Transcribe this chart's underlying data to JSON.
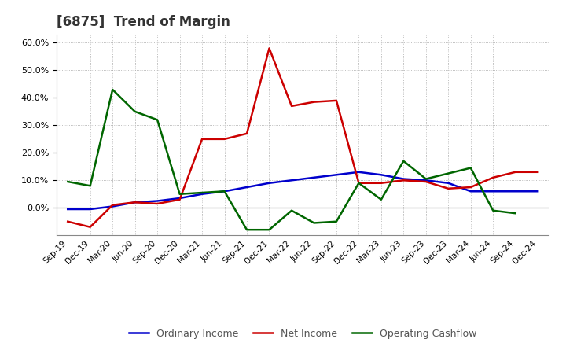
{
  "title": "[6875]  Trend of Margin",
  "x_labels": [
    "Sep-19",
    "Dec-19",
    "Mar-20",
    "Jun-20",
    "Sep-20",
    "Dec-20",
    "Mar-21",
    "Jun-21",
    "Sep-21",
    "Dec-21",
    "Mar-22",
    "Jun-22",
    "Sep-22",
    "Dec-22",
    "Mar-23",
    "Jun-23",
    "Sep-23",
    "Dec-23",
    "Mar-24",
    "Jun-24",
    "Sep-24",
    "Dec-24"
  ],
  "ordinary_income": [
    -0.5,
    -0.5,
    0.5,
    2.0,
    2.5,
    3.5,
    5.0,
    6.0,
    7.5,
    9.0,
    10.0,
    11.0,
    12.0,
    13.0,
    12.0,
    10.5,
    10.0,
    9.0,
    6.0,
    6.0,
    6.0,
    6.0
  ],
  "net_income": [
    -5.0,
    -7.0,
    1.0,
    2.0,
    1.5,
    3.0,
    25.0,
    25.0,
    27.0,
    58.0,
    37.0,
    38.5,
    39.0,
    9.0,
    9.0,
    10.0,
    9.5,
    7.0,
    7.5,
    11.0,
    13.0,
    13.0
  ],
  "operating_cashflow": [
    9.5,
    8.0,
    43.0,
    35.0,
    32.0,
    5.0,
    5.5,
    6.0,
    -8.0,
    -8.0,
    -1.0,
    -5.5,
    -5.0,
    9.0,
    3.0,
    17.0,
    10.5,
    12.5,
    14.5,
    -1.0,
    -2.0,
    null
  ],
  "colors": {
    "ordinary_income": "#0000cc",
    "net_income": "#cc0000",
    "operating_cashflow": "#006600"
  },
  "legend_labels": [
    "Ordinary Income",
    "Net Income",
    "Operating Cashflow"
  ],
  "background_color": "#ffffff"
}
